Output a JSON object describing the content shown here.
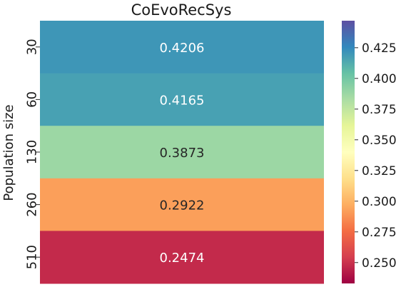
{
  "chart_data": {
    "type": "heatmap",
    "title": "CoEvoRecSys",
    "xlabel": "",
    "ylabel": "Population size",
    "rows": [
      "30",
      "60",
      "130",
      "260",
      "510"
    ],
    "columns": [
      ""
    ],
    "values": [
      [
        0.4206
      ],
      [
        0.4165
      ],
      [
        0.3873
      ],
      [
        0.2922
      ],
      [
        0.2474
      ]
    ],
    "value_labels": [
      "0.4206",
      "0.4165",
      "0.3873",
      "0.2922",
      "0.2474"
    ],
    "colormap": "Spectral",
    "colorbar": {
      "range": [
        0.233,
        0.447
      ],
      "ticks": [
        0.25,
        0.275,
        0.3,
        0.325,
        0.35,
        0.375,
        0.4,
        0.425
      ],
      "tick_labels": [
        "0.250",
        "0.275",
        "0.300",
        "0.325",
        "0.350",
        "0.375",
        "0.400",
        "0.425"
      ]
    },
    "grid": false,
    "legend": "colorbar-right"
  }
}
